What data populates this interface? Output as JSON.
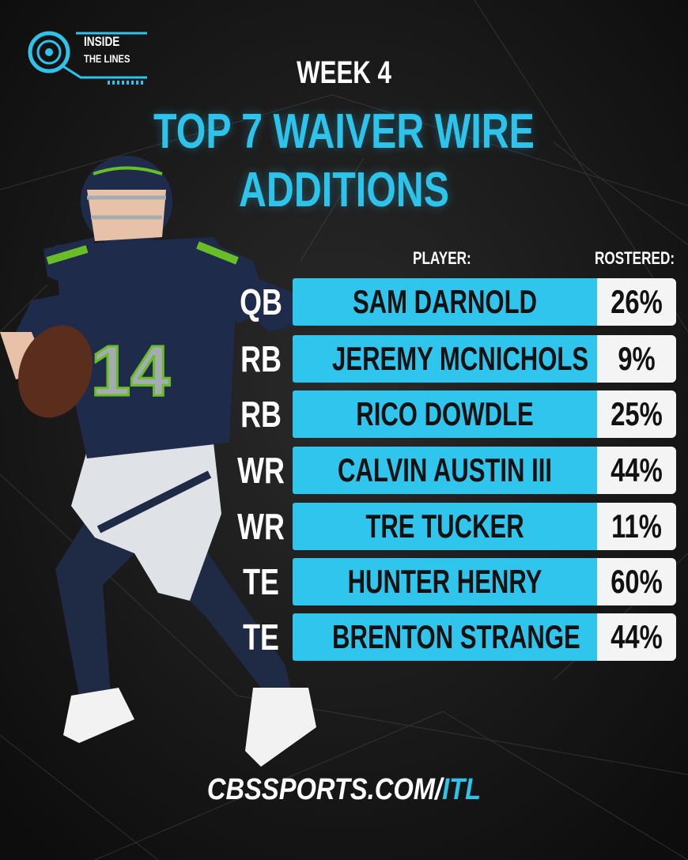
{
  "brand": {
    "logo_line1": "INSIDE",
    "logo_line2": "THE LINES",
    "accent_color": "#2ec3ea"
  },
  "header": {
    "week": "WEEK 4",
    "title": "TOP 7 WAIVER WIRE ADDITIONS"
  },
  "table": {
    "col_player": "PLAYER:",
    "col_rostered": "ROSTERED:",
    "rows": [
      {
        "pos": "QB",
        "name": "SAM DARNOLD",
        "rostered": "26%"
      },
      {
        "pos": "RB",
        "name": "JEREMY MCNICHOLS",
        "rostered": "9%"
      },
      {
        "pos": "RB",
        "name": "RICO DOWDLE",
        "rostered": "25%"
      },
      {
        "pos": "WR",
        "name": "CALVIN AUSTIN III",
        "rostered": "44%"
      },
      {
        "pos": "WR",
        "name": "TRE TUCKER",
        "rostered": "11%"
      },
      {
        "pos": "TE",
        "name": "HUNTER HENRY",
        "rostered": "60%"
      },
      {
        "pos": "TE",
        "name": "BRENTON STRANGE",
        "rostered": "44%"
      }
    ]
  },
  "player_image": {
    "jersey_number": "14"
  },
  "footer": {
    "site_main": "CBSSPORTS.COM/",
    "site_suffix": "ITL"
  }
}
